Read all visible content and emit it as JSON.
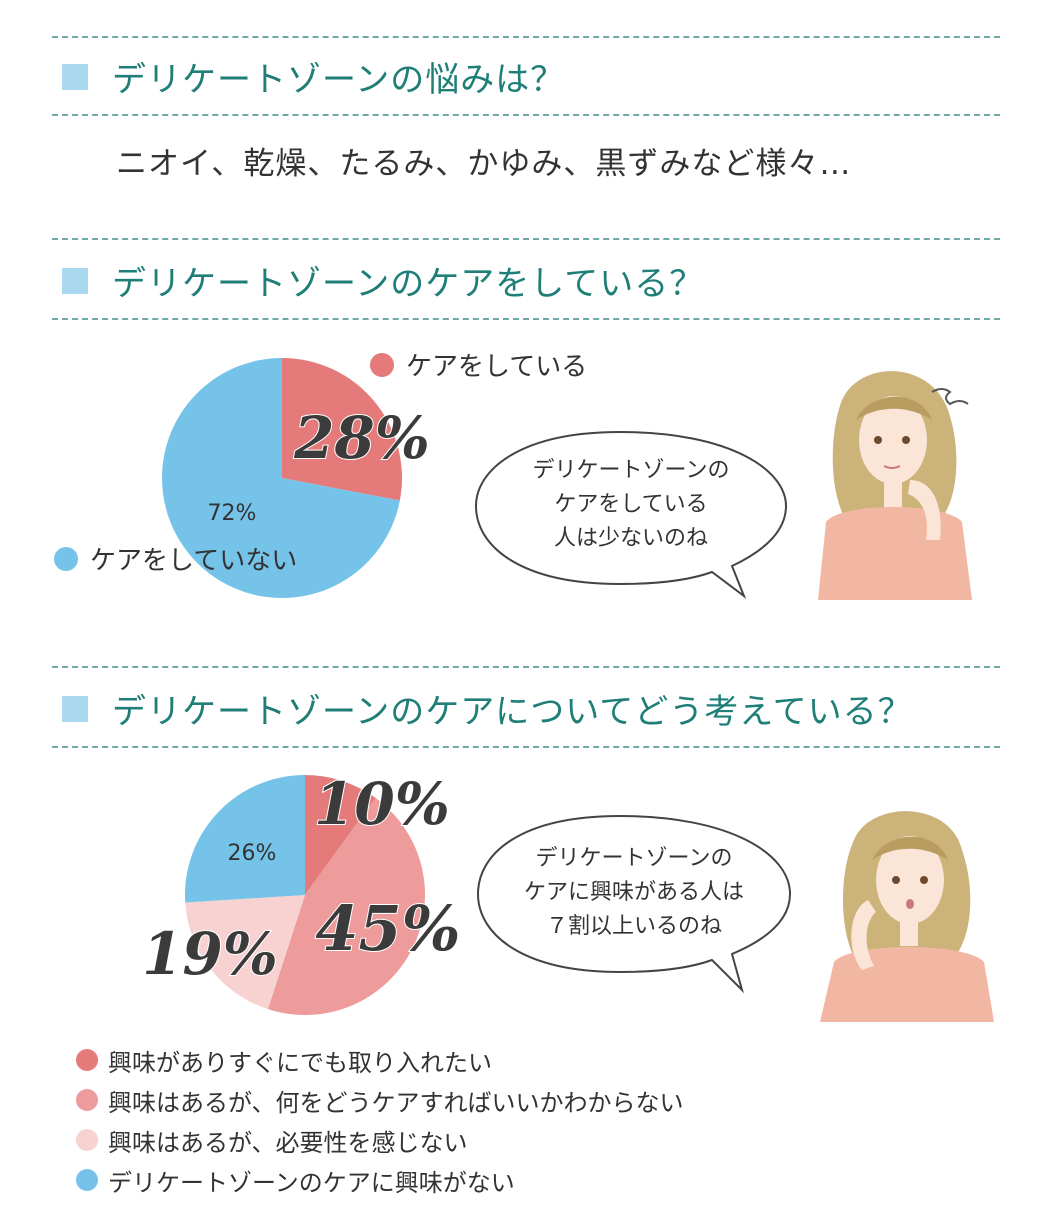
{
  "sections": [
    {
      "title": "デリケートゾーンの悩みは？",
      "subtitle": "ニオイ、乾燥、たるみ、かゆみ、黒ずみなど様々…"
    },
    {
      "title": "デリケートゾーンのケアをしている？"
    },
    {
      "title": "デリケートゾーンのケアについてどう考えている？"
    }
  ],
  "colors": {
    "teal_title": "#1f7f78",
    "blue": "#76c3ea",
    "red": "#e57a7a",
    "salmon": "#ee9b9b",
    "pink": "#f8d1d1"
  },
  "chart_data": [
    {
      "type": "pie",
      "labels": [
        "ケアをしている",
        "ケアをしていない"
      ],
      "values": [
        28,
        72
      ],
      "value_labels": [
        "28%",
        "72%"
      ],
      "colors": [
        "#e57a7a",
        "#76c3ea"
      ],
      "legend": [
        "ケアをしている",
        "ケアをしていない"
      ]
    },
    {
      "type": "pie",
      "labels": [
        "興味がありすぐにでも取り入れたい",
        "興味はあるが、何をどうケアすればいいかわからない",
        "興味はあるが、必要性を感じない",
        "デリケートゾーンのケアに興味がない"
      ],
      "values": [
        10,
        45,
        19,
        26
      ],
      "value_labels": [
        "10%",
        "45%",
        "19%",
        "26%"
      ],
      "colors": [
        "#e57a7a",
        "#ee9b9b",
        "#f8d1d1",
        "#76c3ea"
      ],
      "legend": [
        "興味がありすぐにでも取り入れたい",
        "興味はあるが、何をどうケアすればいいかわからない",
        "興味はあるが、必要性を感じない",
        "デリケートゾーンのケアに興味がない"
      ]
    }
  ],
  "bubbles": [
    {
      "lines": [
        "デリケートゾーンの",
        "ケアをしている",
        "人は少ないのね"
      ]
    },
    {
      "lines": [
        "デリケートゾーンの",
        "ケアに興味がある人は",
        "７割以上いるのね"
      ]
    }
  ],
  "icons": [
    "woman-thinking-illustration",
    "woman-surprised-illustration",
    "speech-bubble-icon",
    "square-bullet-icon",
    "legend-dot-icon"
  ]
}
